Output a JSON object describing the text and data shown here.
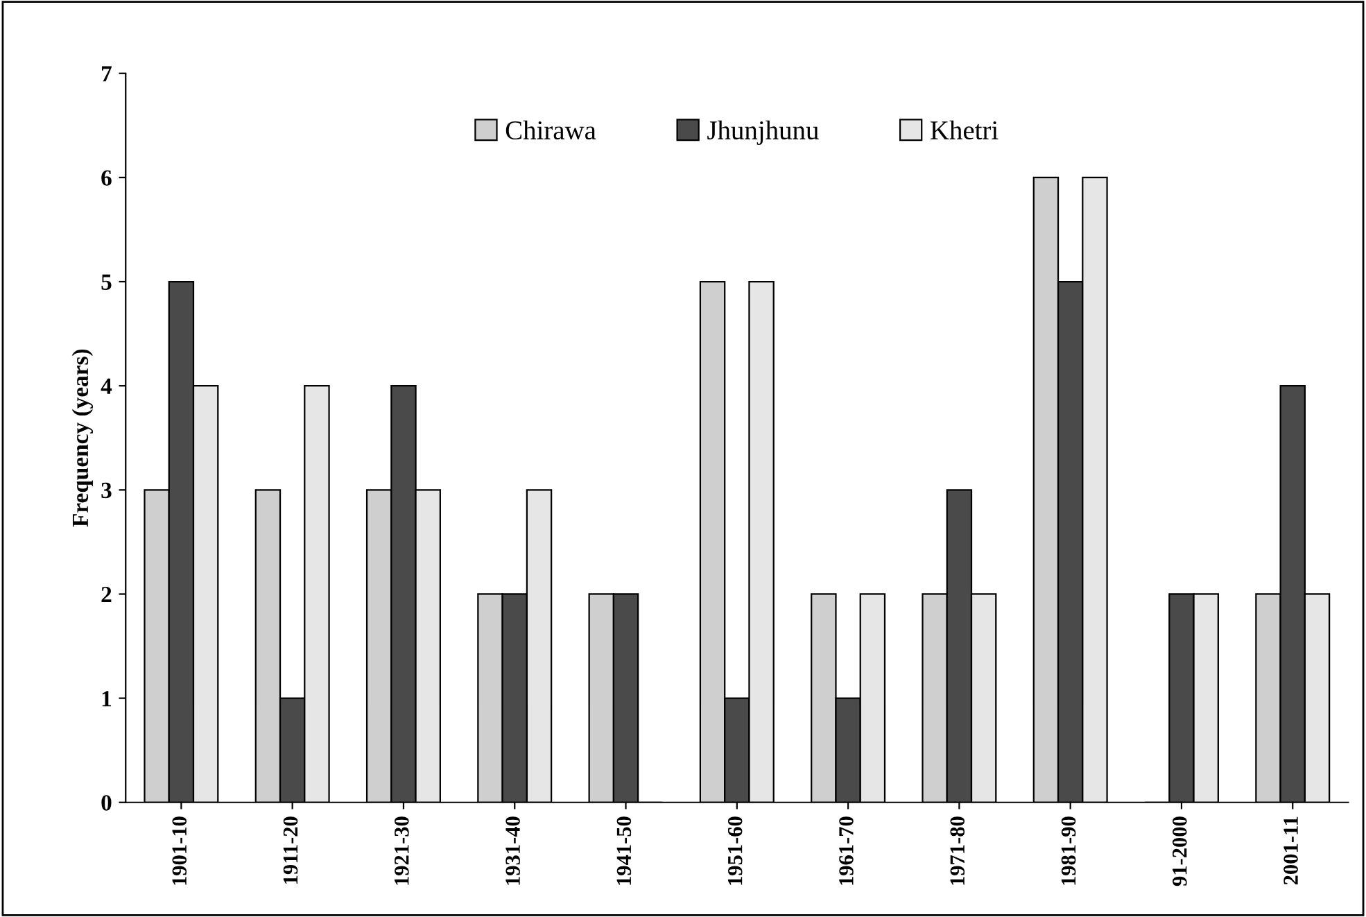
{
  "chart_data": {
    "type": "bar",
    "ylabel": "Frequency (years)",
    "categories": [
      "1901-10",
      "1911-20",
      "1921-30",
      "1931-40",
      "1941-50",
      "1951-60",
      "1961-70",
      "1971-80",
      "1981-90",
      "91-2000",
      "2001-11"
    ],
    "series": [
      {
        "name": "Chirawa",
        "color": "#cfcfcf",
        "values": [
          3,
          3,
          3,
          2,
          2,
          5,
          2,
          2,
          6,
          0,
          2
        ]
      },
      {
        "name": "Jhunjhunu",
        "color": "#4a4a4a",
        "values": [
          5,
          1,
          4,
          2,
          2,
          1,
          1,
          3,
          5,
          2,
          4
        ]
      },
      {
        "name": "Khetri",
        "color": "#e6e6e6",
        "values": [
          4,
          4,
          3,
          3,
          0,
          5,
          2,
          2,
          6,
          2,
          2
        ]
      }
    ],
    "ylim": [
      0,
      7
    ],
    "yticks": [
      0,
      1,
      2,
      3,
      4,
      5,
      6,
      7
    ],
    "grid": false,
    "legend": "top"
  }
}
